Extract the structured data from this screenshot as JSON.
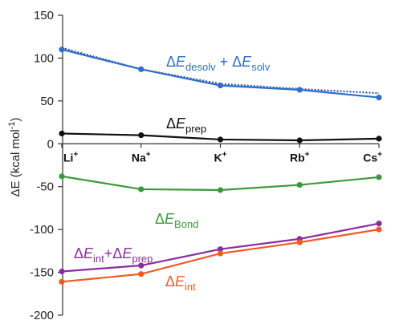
{
  "chart_data": {
    "type": "line",
    "categories": [
      {
        "base": "Li",
        "charge": "+"
      },
      {
        "base": "Na",
        "charge": "+"
      },
      {
        "base": "K",
        "charge": "+"
      },
      {
        "base": "Rb",
        "charge": "+"
      },
      {
        "base": "Cs",
        "charge": "+"
      }
    ],
    "ylabel": {
      "prefix": "ΔE (kcal mol",
      "sup": "-1",
      "suffix": ")"
    },
    "ylim": [
      -200,
      150
    ],
    "yticks": [
      150,
      100,
      50,
      0,
      -50,
      -100,
      -150,
      -200
    ],
    "grid": false,
    "series": [
      {
        "key": "desolv",
        "name_parts": [
          [
            "Δ",
            "n"
          ],
          [
            "E",
            "i"
          ],
          [
            "desolv",
            "s"
          ],
          [
            " + Δ",
            "n"
          ],
          [
            "E",
            "i"
          ],
          [
            "solv",
            "s"
          ]
        ],
        "color": "#2f6fc8",
        "values": [
          110,
          87,
          68,
          63,
          54
        ],
        "trend": [
          112,
          87,
          70,
          64,
          59
        ]
      },
      {
        "key": "prep",
        "name_parts": [
          [
            "Δ",
            "n"
          ],
          [
            "E",
            "i"
          ],
          [
            "prep",
            "s"
          ]
        ],
        "color": "#111111",
        "values": [
          12,
          10,
          5,
          4,
          6
        ]
      },
      {
        "key": "bond",
        "name_parts": [
          [
            "Δ",
            "n"
          ],
          [
            "E",
            "i"
          ],
          [
            "Bond",
            "s"
          ]
        ],
        "color": "#3a9a3a",
        "values": [
          -38,
          -53,
          -54,
          -48,
          -39
        ]
      },
      {
        "key": "intprep",
        "name_parts": [
          [
            "Δ",
            "n"
          ],
          [
            "E",
            "i"
          ],
          [
            "int",
            "s"
          ],
          [
            "+Δ",
            "n"
          ],
          [
            "E",
            "i"
          ],
          [
            "prep",
            "s"
          ]
        ],
        "color": "#8a2d9e",
        "values": [
          -149,
          -142,
          -123,
          -111,
          -93
        ]
      },
      {
        "key": "int",
        "name_parts": [
          [
            "Δ",
            "n"
          ],
          [
            "E",
            "i"
          ],
          [
            "int",
            "s"
          ]
        ],
        "color": "#f05a22",
        "values": [
          -161,
          -152,
          -128,
          -115,
          -100
        ]
      }
    ]
  }
}
